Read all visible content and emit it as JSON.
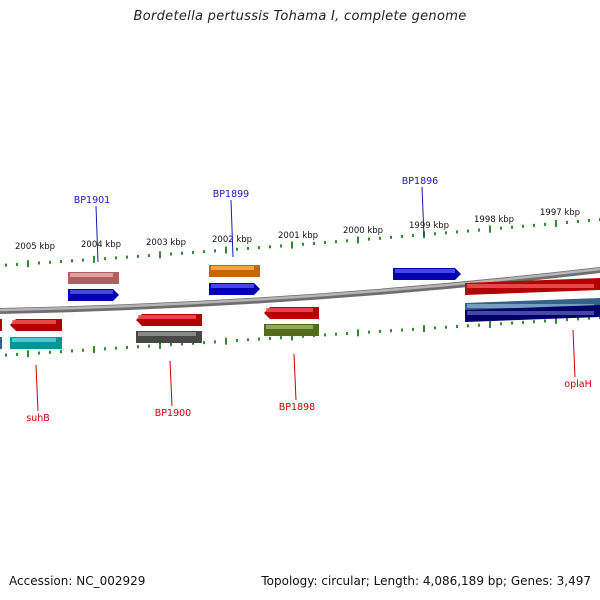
{
  "title": "Bordetella pertussis Tohama I, complete genome",
  "footer": {
    "accession": "Accession: NC_002929",
    "summary": "Topology: circular; Length: 4,086,189 bp; Genes: 3,497"
  },
  "colors": {
    "backbone": "#8a8a8a",
    "tick": "#2e8b2e",
    "label_forward": "#1a1aaa",
    "label_reverse": "#cc0000",
    "kbp_text": "#111111"
  },
  "kbp_labels": [
    "2005 kbp",
    "2004 kbp",
    "2003 kbp",
    "2002 kbp",
    "2001 kbp",
    "2000 kbp",
    "1999 kbp",
    "1998 kbp",
    "1997 kbp"
  ],
  "gene_labels": {
    "forward": [
      "BP1901",
      "BP1899",
      "BP1896"
    ],
    "reverse": [
      "suhB",
      "BP1900",
      "BP1898",
      "oplaH"
    ]
  }
}
